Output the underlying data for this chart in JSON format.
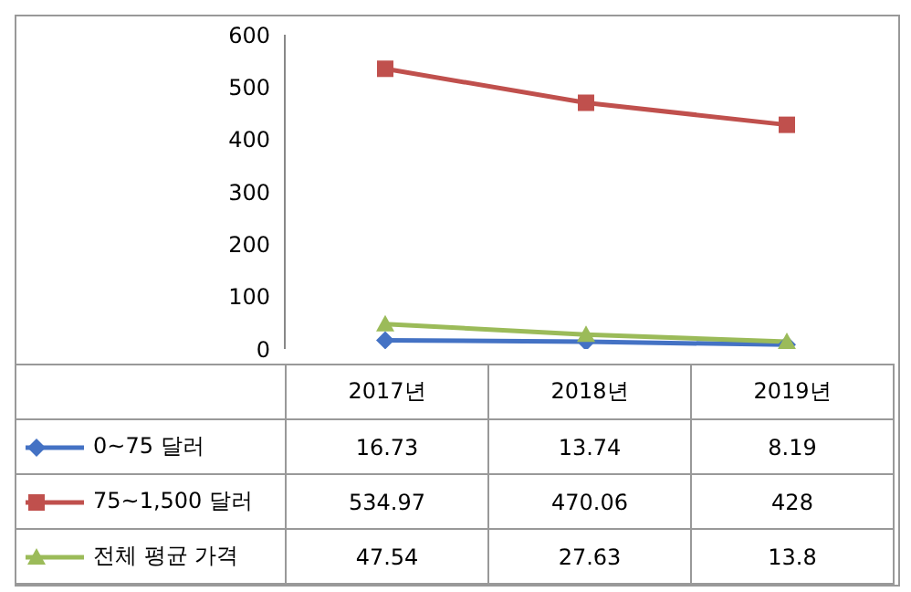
{
  "chart_data": {
    "type": "line",
    "categories": [
      "2017년",
      "2018년",
      "2019년"
    ],
    "series": [
      {
        "name": "0~75 달러",
        "color": "#4472c4",
        "marker": "diamond",
        "values": [
          16.73,
          13.74,
          8.19
        ]
      },
      {
        "name": "75~1,500 달러",
        "color": "#c0504d",
        "marker": "square",
        "values": [
          534.97,
          470.06,
          428
        ]
      },
      {
        "name": "전체 평균 가격",
        "color": "#9bbb59",
        "marker": "triangle",
        "values": [
          47.54,
          27.63,
          13.8
        ]
      }
    ],
    "ylim": [
      0,
      600
    ],
    "yticks": [
      0,
      100,
      200,
      300,
      400,
      500,
      600
    ],
    "legend": "bottom",
    "data_labels": true
  }
}
